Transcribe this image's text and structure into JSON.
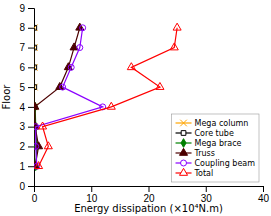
{
  "chart_data": {
    "type": "line",
    "xlabel": "Energy dissipation (×10⁴N.m)",
    "ylabel": "Floor",
    "xlim": [
      0,
      40
    ],
    "ylim": [
      0,
      9
    ],
    "xticks": [
      0,
      10,
      20,
      30,
      40
    ],
    "yticks": [
      0,
      1,
      2,
      3,
      4,
      5,
      6,
      7,
      8,
      9
    ],
    "grid": false,
    "legend": "lower right",
    "series": [
      {
        "name": "Mega column",
        "color": "#FFA500",
        "marker": "x",
        "x": [
          0.05,
          0.05,
          0.05,
          0.05,
          0.05,
          0.05,
          0.05,
          0.05
        ],
        "values": [
          1,
          2,
          3,
          4,
          5,
          6,
          7,
          8
        ]
      },
      {
        "name": "Core tube",
        "color": "#000000",
        "marker": "square-open",
        "x": [
          0.05,
          0.05,
          0.05,
          0.05,
          0.05,
          0.05,
          0.05,
          0.05
        ],
        "values": [
          1,
          2,
          3,
          4,
          5,
          6,
          7,
          8
        ]
      },
      {
        "name": "Mega brace",
        "color": "#008000",
        "marker": "diamond",
        "x": [
          0.3,
          0.5,
          0.3,
          0.2
        ],
        "values": [
          1,
          2,
          3,
          4
        ]
      },
      {
        "name": "Truss",
        "color": "#4B0000",
        "marker": "triangle-up",
        "x": [
          0.2,
          0.8,
          0.2,
          0.15,
          4.5,
          6.0,
          7.0,
          8.0
        ],
        "values": [
          1,
          2,
          3,
          4,
          5,
          6,
          7,
          8
        ]
      },
      {
        "name": "Coupling beam",
        "color": "#8B00FF",
        "marker": "circle-open",
        "x": [
          0.5,
          0.3,
          0.3,
          12.0,
          5.0,
          6.5,
          8.0,
          8.5
        ],
        "values": [
          1,
          2,
          3,
          4,
          5,
          6,
          7,
          8
        ]
      },
      {
        "name": "Total",
        "color": "#FF0000",
        "marker": "triangle-up-open",
        "x": [
          0.8,
          2.5,
          1.5,
          13.5,
          22.0,
          17.0,
          24.5,
          25.0
        ],
        "values": [
          1,
          2,
          3,
          4,
          5,
          6,
          7,
          8
        ]
      }
    ]
  }
}
